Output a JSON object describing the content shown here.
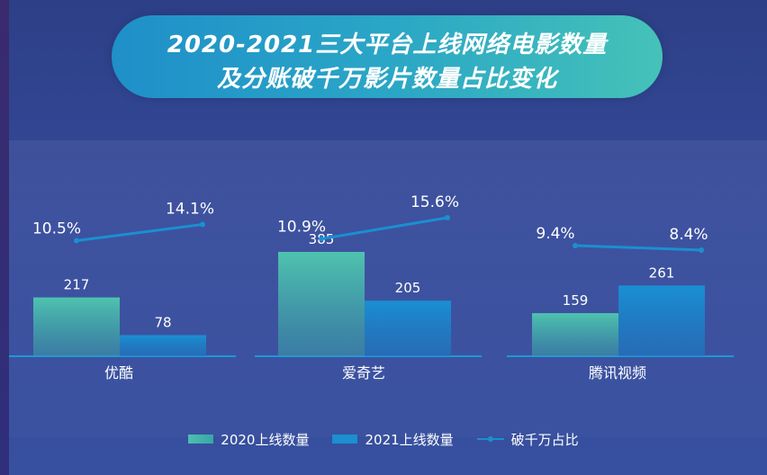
{
  "title": {
    "line1": "2020-2021三大平台上线网络电影数量",
    "line2": "及分账破千万影片数量占比变化"
  },
  "legend": {
    "s2020": "2020上线数量",
    "s2021": "2021上线数量",
    "ratio": "破千万占比"
  },
  "colors": {
    "bar2020": "#4dbfae",
    "bar2021": "#1b8fd0",
    "line": "#1b8fd0",
    "text": "#ffffff"
  },
  "chart_data": {
    "type": "bar",
    "categories": [
      "优酷",
      "爱奇艺",
      "腾讯视频"
    ],
    "series": [
      {
        "name": "2020上线数量",
        "values": [
          217,
          385,
          159
        ]
      },
      {
        "name": "2021上线数量",
        "values": [
          78,
          205,
          261
        ]
      }
    ],
    "line_series": [
      {
        "name": "破千万占比",
        "values_2020": [
          10.5,
          10.9,
          9.4
        ],
        "values_2021": [
          14.1,
          15.6,
          8.4
        ]
      }
    ],
    "value_labels_2020": [
      "217",
      "385",
      "159"
    ],
    "value_labels_2021": [
      "78",
      "205",
      "261"
    ],
    "ratio_labels_2020": [
      "10.5%",
      "10.9%",
      "9.4%"
    ],
    "ratio_labels_2021": [
      "14.1%",
      "15.6%",
      "8.4%"
    ],
    "title": "2020-2021三大平台上线网络电影数量及分账破千万影片数量占比变化",
    "ylim": [
      0,
      385
    ]
  }
}
